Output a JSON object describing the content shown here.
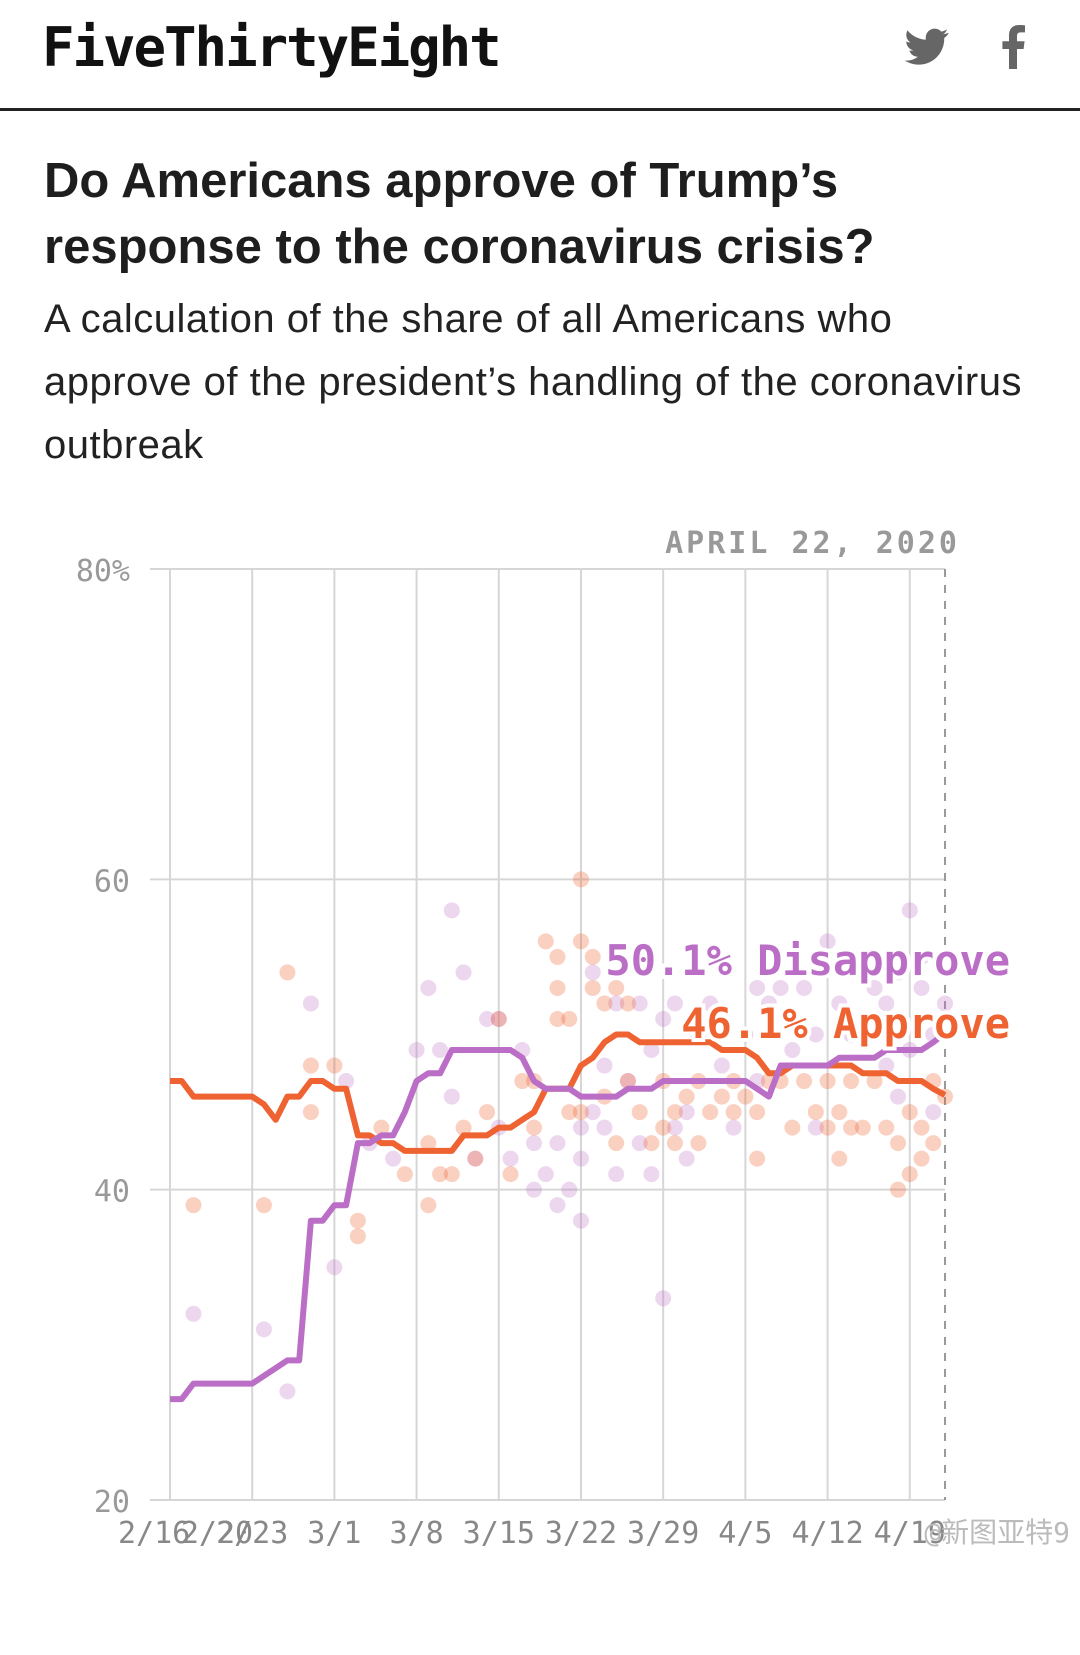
{
  "header": {
    "brand": "FiveThirtyEight",
    "icons": [
      "twitter-icon",
      "facebook-icon"
    ]
  },
  "article": {
    "headline": "Do Americans approve of Trump’s response to the coronavirus crisis?",
    "dek": "A calculation of the share of all Americans who approve of the president’s handling of the coronavirus outbreak"
  },
  "watermark": "@新图亚特9",
  "chart_data": {
    "type": "line",
    "title": "",
    "date_label": "APRIL 22, 2020",
    "xlabel": "",
    "ylabel": "",
    "ylim": [
      20,
      80
    ],
    "y_ticks": [
      20,
      40,
      60,
      80
    ],
    "y_tick_labels": [
      "20",
      "40",
      "60",
      "80%"
    ],
    "x_range": [
      0,
      66
    ],
    "x_ticks": [
      0,
      7,
      14,
      21,
      28,
      35,
      42,
      49,
      56,
      63
    ],
    "x_tick_labels": [
      "2/16",
      "2/20",
      "2/23",
      "3/1",
      "3/8",
      "3/15",
      "3/22",
      "3/29",
      "4/5",
      "4/12",
      "4/19"
    ],
    "x_tick_label_positions": [
      0,
      4,
      7,
      14,
      21,
      28,
      35,
      42,
      49,
      56,
      63
    ],
    "grid": true,
    "colors": {
      "approve": "#ee6331",
      "disapprove": "#bb6ec5"
    },
    "series": [
      {
        "name": "Approve",
        "end_label": "46.1% Approve",
        "color": "#ee6331",
        "points": [
          [
            0,
            47
          ],
          [
            1,
            47
          ],
          [
            2,
            46
          ],
          [
            3,
            46
          ],
          [
            4,
            46
          ],
          [
            5,
            46
          ],
          [
            6,
            46
          ],
          [
            7,
            46
          ],
          [
            8,
            45.5
          ],
          [
            9,
            44.5
          ],
          [
            10,
            46
          ],
          [
            11,
            46
          ],
          [
            12,
            47
          ],
          [
            13,
            47
          ],
          [
            14,
            46.5
          ],
          [
            15,
            46.5
          ],
          [
            16,
            43.5
          ],
          [
            17,
            43.5
          ],
          [
            18,
            43
          ],
          [
            19,
            43
          ],
          [
            20,
            42.5
          ],
          [
            21,
            42.5
          ],
          [
            22,
            42.5
          ],
          [
            23,
            42.5
          ],
          [
            24,
            42.5
          ],
          [
            25,
            43.5
          ],
          [
            26,
            43.5
          ],
          [
            27,
            43.5
          ],
          [
            28,
            44
          ],
          [
            29,
            44
          ],
          [
            30,
            44.5
          ],
          [
            31,
            45
          ],
          [
            32,
            46.5
          ],
          [
            33,
            46.5
          ],
          [
            34,
            46.5
          ],
          [
            35,
            48
          ],
          [
            36,
            48.5
          ],
          [
            37,
            49.5
          ],
          [
            38,
            50
          ],
          [
            39,
            50
          ],
          [
            40,
            49.5
          ],
          [
            41,
            49.5
          ],
          [
            42,
            49.5
          ],
          [
            43,
            49.5
          ],
          [
            44,
            49.5
          ],
          [
            45,
            49.5
          ],
          [
            46,
            49.5
          ],
          [
            47,
            49
          ],
          [
            48,
            49
          ],
          [
            49,
            49
          ],
          [
            50,
            48.5
          ],
          [
            51,
            47.5
          ],
          [
            52,
            47.5
          ],
          [
            53,
            48
          ],
          [
            54,
            48
          ],
          [
            55,
            48
          ],
          [
            56,
            48
          ],
          [
            57,
            48
          ],
          [
            58,
            48
          ],
          [
            59,
            47.5
          ],
          [
            60,
            47.5
          ],
          [
            61,
            47.5
          ],
          [
            62,
            47
          ],
          [
            63,
            47
          ],
          [
            64,
            47
          ],
          [
            65,
            46.5
          ],
          [
            66,
            46.1
          ]
        ]
      },
      {
        "name": "Disapprove",
        "end_label": "50.1% Disapprove",
        "color": "#bb6ec5",
        "points": [
          [
            0,
            26.5
          ],
          [
            1,
            26.5
          ],
          [
            2,
            27.5
          ],
          [
            3,
            27.5
          ],
          [
            4,
            27.5
          ],
          [
            5,
            27.5
          ],
          [
            6,
            27.5
          ],
          [
            7,
            27.5
          ],
          [
            8,
            28
          ],
          [
            9,
            28.5
          ],
          [
            10,
            29
          ],
          [
            11,
            29
          ],
          [
            12,
            38
          ],
          [
            13,
            38
          ],
          [
            14,
            39
          ],
          [
            15,
            39
          ],
          [
            16,
            43
          ],
          [
            17,
            43
          ],
          [
            18,
            43.5
          ],
          [
            19,
            43.5
          ],
          [
            20,
            45
          ],
          [
            21,
            47
          ],
          [
            22,
            47.5
          ],
          [
            23,
            47.5
          ],
          [
            24,
            49
          ],
          [
            25,
            49
          ],
          [
            26,
            49
          ],
          [
            27,
            49
          ],
          [
            28,
            49
          ],
          [
            29,
            49
          ],
          [
            30,
            48.5
          ],
          [
            31,
            47
          ],
          [
            32,
            46.5
          ],
          [
            33,
            46.5
          ],
          [
            34,
            46.5
          ],
          [
            35,
            46
          ],
          [
            36,
            46
          ],
          [
            37,
            46
          ],
          [
            38,
            46
          ],
          [
            39,
            46.5
          ],
          [
            40,
            46.5
          ],
          [
            41,
            46.5
          ],
          [
            42,
            47
          ],
          [
            43,
            47
          ],
          [
            44,
            47
          ],
          [
            45,
            47
          ],
          [
            46,
            47
          ],
          [
            47,
            47
          ],
          [
            48,
            47
          ],
          [
            49,
            47
          ],
          [
            50,
            46.5
          ],
          [
            51,
            46
          ],
          [
            52,
            48
          ],
          [
            53,
            48
          ],
          [
            54,
            48
          ],
          [
            55,
            48
          ],
          [
            56,
            48
          ],
          [
            57,
            48.5
          ],
          [
            58,
            48.5
          ],
          [
            59,
            48.5
          ],
          [
            60,
            48.5
          ],
          [
            61,
            49
          ],
          [
            62,
            49
          ],
          [
            63,
            49
          ],
          [
            64,
            49
          ],
          [
            65,
            49.5
          ],
          [
            66,
            50.1
          ]
        ]
      }
    ],
    "polls": {
      "approve": [
        [
          2,
          39
        ],
        [
          8,
          39
        ],
        [
          10,
          54
        ],
        [
          12,
          48
        ],
        [
          12,
          45
        ],
        [
          14,
          48
        ],
        [
          16,
          38
        ],
        [
          16,
          37
        ],
        [
          18,
          44
        ],
        [
          20,
          41
        ],
        [
          22,
          43
        ],
        [
          22,
          39
        ],
        [
          23,
          41
        ],
        [
          24,
          41
        ],
        [
          25,
          44
        ],
        [
          26,
          42
        ],
        [
          27,
          45
        ],
        [
          28,
          51
        ],
        [
          29,
          41
        ],
        [
          30,
          47
        ],
        [
          31,
          44
        ],
        [
          31,
          47
        ],
        [
          32,
          56
        ],
        [
          33,
          51
        ],
        [
          33,
          55
        ],
        [
          33,
          53
        ],
        [
          34,
          45
        ],
        [
          34,
          51
        ],
        [
          35,
          56
        ],
        [
          35,
          45
        ],
        [
          36,
          53
        ],
        [
          36,
          55
        ],
        [
          37,
          52
        ],
        [
          37,
          46
        ],
        [
          38,
          53
        ],
        [
          38,
          43
        ],
        [
          39,
          52
        ],
        [
          39,
          47
        ],
        [
          40,
          45
        ],
        [
          41,
          43
        ],
        [
          42,
          44
        ],
        [
          42,
          47
        ],
        [
          43,
          43
        ],
        [
          43,
          45
        ],
        [
          44,
          46
        ],
        [
          45,
          43
        ],
        [
          45,
          47
        ],
        [
          46,
          45
        ],
        [
          47,
          46
        ],
        [
          48,
          45
        ],
        [
          48,
          47
        ],
        [
          49,
          46
        ],
        [
          50,
          45
        ],
        [
          50,
          42
        ],
        [
          51,
          47
        ],
        [
          52,
          47
        ],
        [
          53,
          44
        ],
        [
          54,
          47
        ],
        [
          55,
          45
        ],
        [
          56,
          44
        ],
        [
          56,
          47
        ],
        [
          57,
          45
        ],
        [
          57,
          42
        ],
        [
          58,
          44
        ],
        [
          58,
          47
        ],
        [
          59,
          44
        ],
        [
          60,
          47
        ],
        [
          61,
          44
        ],
        [
          62,
          40
        ],
        [
          62,
          43
        ],
        [
          63,
          41
        ],
        [
          63,
          45
        ],
        [
          64,
          44
        ],
        [
          64,
          42
        ],
        [
          65,
          43
        ],
        [
          65,
          47
        ],
        [
          66,
          46
        ],
        [
          35,
          60
        ]
      ],
      "disapprove": [
        [
          2,
          32
        ],
        [
          8,
          31
        ],
        [
          10,
          27
        ],
        [
          12,
          52
        ],
        [
          14,
          35
        ],
        [
          15,
          47
        ],
        [
          17,
          43
        ],
        [
          19,
          42
        ],
        [
          21,
          49
        ],
        [
          22,
          53
        ],
        [
          23,
          49
        ],
        [
          24,
          46
        ],
        [
          24,
          58
        ],
        [
          25,
          54
        ],
        [
          26,
          42
        ],
        [
          27,
          51
        ],
        [
          28,
          44
        ],
        [
          28,
          51
        ],
        [
          29,
          42
        ],
        [
          30,
          49
        ],
        [
          31,
          43
        ],
        [
          31,
          40
        ],
        [
          32,
          41
        ],
        [
          33,
          39
        ],
        [
          33,
          43
        ],
        [
          34,
          40
        ],
        [
          35,
          44
        ],
        [
          35,
          42
        ],
        [
          35,
          38
        ],
        [
          36,
          45
        ],
        [
          36,
          54
        ],
        [
          37,
          48
        ],
        [
          37,
          44
        ],
        [
          38,
          41
        ],
        [
          38,
          52
        ],
        [
          39,
          47
        ],
        [
          40,
          52
        ],
        [
          40,
          43
        ],
        [
          41,
          41
        ],
        [
          41,
          49
        ],
        [
          42,
          33
        ],
        [
          42,
          51
        ],
        [
          43,
          44
        ],
        [
          43,
          52
        ],
        [
          44,
          45
        ],
        [
          44,
          42
        ],
        [
          45,
          50
        ],
        [
          46,
          52
        ],
        [
          47,
          48
        ],
        [
          48,
          44
        ],
        [
          49,
          50
        ],
        [
          50,
          47
        ],
        [
          50,
          53
        ],
        [
          51,
          52
        ],
        [
          52,
          53
        ],
        [
          53,
          49
        ],
        [
          54,
          53
        ],
        [
          55,
          50
        ],
        [
          55,
          44
        ],
        [
          56,
          56
        ],
        [
          57,
          52
        ],
        [
          58,
          50
        ],
        [
          59,
          55
        ],
        [
          60,
          53
        ],
        [
          61,
          48
        ],
        [
          61,
          52
        ],
        [
          62,
          54
        ],
        [
          62,
          46
        ],
        [
          63,
          58
        ],
        [
          63,
          49
        ],
        [
          64,
          55
        ],
        [
          64,
          53
        ],
        [
          65,
          50
        ],
        [
          65,
          45
        ],
        [
          66,
          52
        ]
      ]
    }
  }
}
